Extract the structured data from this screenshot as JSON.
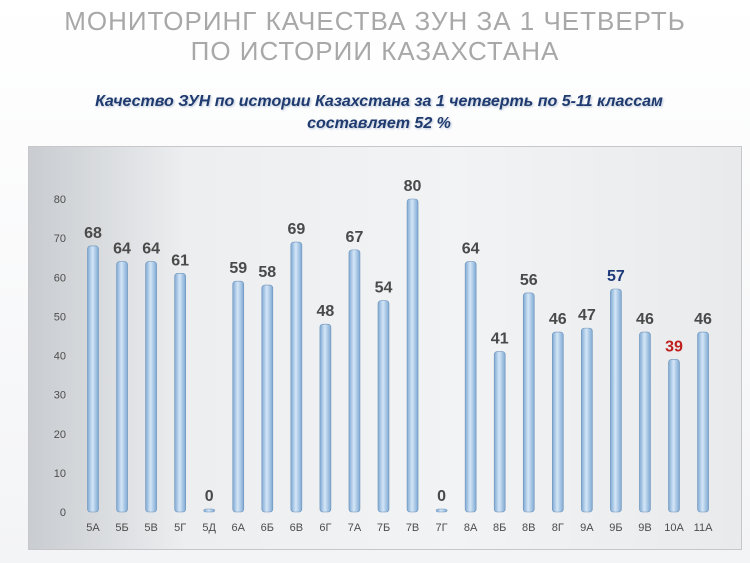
{
  "header": {
    "title_line1": "МОНИТОРИНГ  КАЧЕСТВА ЗУН ЗА 1  ЧЕТВЕРТЬ",
    "title_line2": "ПО  ИСТОРИИ  КАЗАХСТАНА",
    "subtitle_line1": "Качество ЗУН по истории Казахстана  за 1 четверть  по 5-11 классам",
    "subtitle_line2": "составляет  52  %"
  },
  "chart_data": {
    "type": "bar",
    "categories": [
      "5А",
      "5Б",
      "5В",
      "5Г",
      "5Д",
      "6А",
      "6Б",
      "6В",
      "6Г",
      "7А",
      "7Б",
      "7В",
      "7Г",
      "8А",
      "8Б",
      "8В",
      "8Г",
      "9А",
      "9Б",
      "9В",
      "10А",
      "11А"
    ],
    "values": [
      68,
      64,
      64,
      61,
      0,
      59,
      58,
      69,
      48,
      67,
      54,
      80,
      0,
      64,
      41,
      56,
      46,
      47,
      57,
      46,
      39,
      46
    ],
    "ylim": [
      0,
      80
    ],
    "yticks": [
      0,
      10,
      20,
      30,
      40,
      50,
      60,
      70,
      80
    ],
    "title": "",
    "xlabel": "",
    "ylabel": "",
    "grid": false,
    "colors": {
      "bar_light": "#d4e6f7",
      "bar_dark": "#7fa9d3",
      "bar_stroke": "#6d93bb",
      "label_default": "#4a4a4a",
      "label_highlight_blue": "#1f3a7a",
      "label_highlight_red": "#c0201e"
    },
    "label_colors": {
      "9Б": "#1f3a7a",
      "10А": "#c0201e"
    }
  }
}
